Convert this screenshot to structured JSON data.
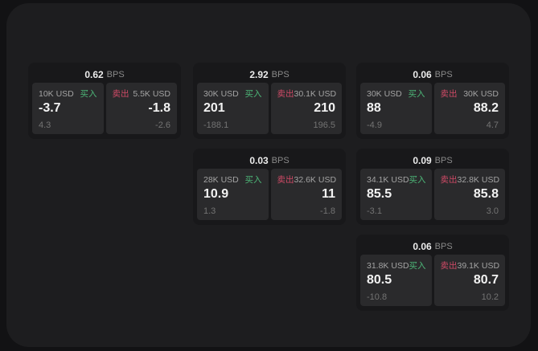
{
  "labels": {
    "buy": "买入",
    "sell": "卖出",
    "bps_unit": "BPS"
  },
  "colors": {
    "buy_green": "#4db778",
    "sell_red": "#cf4a66",
    "panel_bg": "#1d1d1f",
    "card_bg": "#18181a",
    "quote_bg": "#2a2a2c"
  },
  "cards": [
    {
      "bps": "0.62",
      "buy": {
        "amount": "10K USD",
        "price": "-3.7",
        "delta": "4.3"
      },
      "sell": {
        "amount": "5.5K USD",
        "price": "-1.8",
        "delta": "-2.6"
      }
    },
    {
      "bps": "2.92",
      "buy": {
        "amount": "30K USD",
        "price": "201",
        "delta": "-188.1"
      },
      "sell": {
        "amount": "30.1K USD",
        "price": "210",
        "delta": "196.5"
      }
    },
    {
      "bps": "0.06",
      "buy": {
        "amount": "30K USD",
        "price": "88",
        "delta": "-4.9"
      },
      "sell": {
        "amount": "30K USD",
        "price": "88.2",
        "delta": "4.7"
      }
    },
    {
      "bps": "0.03",
      "buy": {
        "amount": "28K USD",
        "price": "10.9",
        "delta": "1.3"
      },
      "sell": {
        "amount": "32.6K USD",
        "price": "11",
        "delta": "-1.8"
      }
    },
    {
      "bps": "0.09",
      "buy": {
        "amount": "34.1K USD",
        "price": "85.5",
        "delta": "-3.1"
      },
      "sell": {
        "amount": "32.8K USD",
        "price": "85.8",
        "delta": "3.0"
      }
    },
    {
      "bps": "0.06",
      "buy": {
        "amount": "31.8K USD",
        "price": "80.5",
        "delta": "-10.8"
      },
      "sell": {
        "amount": "39.1K USD",
        "price": "80.7",
        "delta": "10.2"
      }
    }
  ]
}
